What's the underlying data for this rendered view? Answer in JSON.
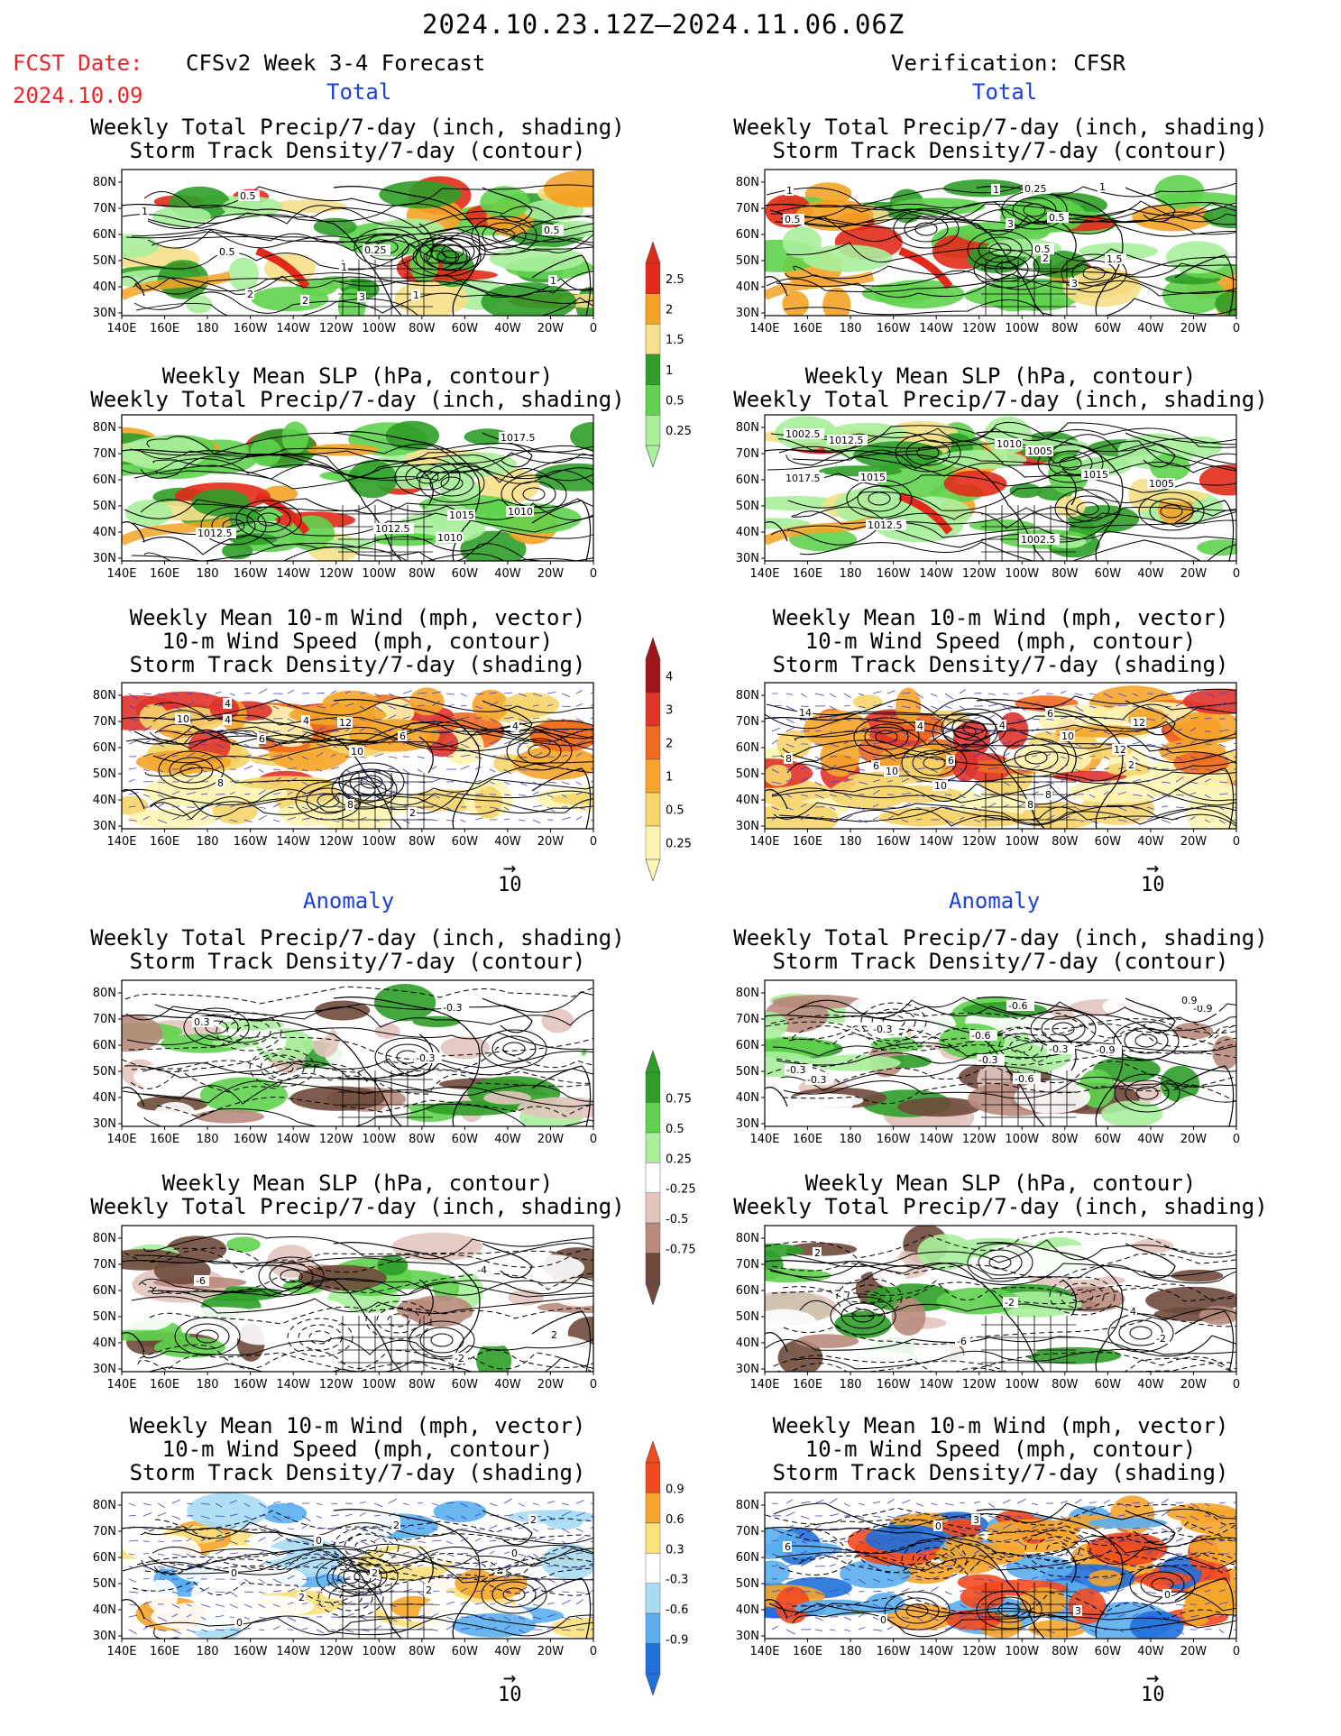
{
  "header": {
    "main_title": "2024.10.23.12Z–2024.11.06.06Z",
    "fcst_label": "FCST Date:",
    "fcst_date": "2024.10.09",
    "left_title": "CFSv2 Week 3-4 Forecast",
    "right_title": "Verification: CFSR",
    "section_total": "Total",
    "section_anomaly": "Anomaly"
  },
  "panel_titles": {
    "precip_storm": [
      "Weekly Total Precip/7-day (inch, shading)",
      "Storm Track Density/7-day (contour)"
    ],
    "slp_precip": [
      "Weekly Mean SLP (hPa, contour)",
      "Weekly Total Precip/7-day (inch, shading)"
    ],
    "wind": [
      "Weekly Mean 10-m Wind (mph, vector)",
      "10-m Wind Speed (mph, contour)",
      "Storm Track Density/7-day (shading)"
    ]
  },
  "axes": {
    "lon_labels": [
      "140E",
      "160E",
      "180",
      "160W",
      "140W",
      "120W",
      "100W",
      "80W",
      "60W",
      "40W",
      "20W",
      "0"
    ],
    "lat_labels": [
      "80N",
      "70N",
      "60N",
      "50N",
      "40N",
      "30N"
    ]
  },
  "vector_ref": "10",
  "colorbars": {
    "precip_total": {
      "labels": [
        "2.5",
        "2",
        "1.5",
        "1",
        "0.5",
        "0.25"
      ],
      "colors": [
        "#e22a1a",
        "#f5a326",
        "#f7e08a",
        "#2e9e28",
        "#5fd34e",
        "#a9ef9c"
      ]
    },
    "storm_total": {
      "labels": [
        "4",
        "3",
        "2",
        "1",
        "0.5",
        "0.25"
      ],
      "colors": [
        "#a0141a",
        "#e0332a",
        "#f06a20",
        "#f6a52a",
        "#f6d56c",
        "#fdf5b4"
      ]
    },
    "precip_anom": {
      "labels": [
        "0.75",
        "0.5",
        "0.25",
        "-0.25",
        "-0.5",
        "-0.75"
      ],
      "colors": [
        "#2e9e28",
        "#5fd34e",
        "#a9ef9c",
        "#ffffff",
        "#e2c5bd",
        "#b88b7c",
        "#6f4a3c"
      ]
    },
    "storm_anom": {
      "labels": [
        "0.9",
        "0.6",
        "0.3",
        "-0.3",
        "-0.6",
        "-0.9"
      ],
      "colors": [
        "#f24a1e",
        "#f6a52a",
        "#fbe17a",
        "#ffffff",
        "#a8dcf5",
        "#5aaef0",
        "#1f6fdc"
      ]
    }
  },
  "contour_labels": {
    "L1": [
      "1",
      "0.5",
      "2",
      "0.5",
      "3",
      "1",
      "0.5",
      "0.25",
      "1",
      "2",
      "1"
    ],
    "R1": [
      "1",
      "0.5",
      "0.25",
      "2",
      "3",
      "1.5",
      "0.5",
      "1",
      "3",
      "0.5",
      "1"
    ],
    "L2": [
      "1012.5",
      "1010",
      "1010",
      "1012.5",
      "1017.5",
      "1015"
    ],
    "R2": [
      "1005",
      "1012.5",
      "1012.5",
      "1002.5",
      "1005",
      "1010",
      "1015",
      "1015",
      "1002.5",
      "1017.5"
    ],
    "L3": [
      "2",
      "8",
      "10",
      "10",
      "4",
      "12",
      "4",
      "4",
      "6",
      "4",
      "6",
      "8"
    ],
    "R3": [
      "10",
      "8",
      "2",
      "4",
      "6",
      "10",
      "12",
      "10",
      "4",
      "8",
      "6",
      "14",
      "12",
      "6",
      "8"
    ],
    "L4": [
      "-0.3",
      "-0.3",
      "0.3"
    ],
    "R4": [
      "-0.9",
      "-0.3",
      "-0.6",
      "-0.3",
      "-0.6",
      "-0.9",
      "0.9",
      "-0.6",
      "-0.3",
      "-0.3",
      "-0.3"
    ],
    "L5": [
      "-4",
      "-6",
      "-2",
      "2"
    ],
    "R5": [
      "4",
      "-2",
      "2",
      "-6",
      "-2"
    ],
    "L6": [
      "0",
      "2",
      "2",
      "2",
      "0",
      "2",
      "2",
      "0",
      "0"
    ],
    "R6": [
      "0",
      "6",
      "3",
      "0",
      "0",
      "3"
    ]
  },
  "chart_data": [
    {
      "type": "heatmap",
      "title": "Weekly Total Precip/7-day (inch, shading)",
      "subtitle": "Storm Track Density/7-day (contour)",
      "panel": "CFSv2 Week 3-4 Forecast - Total",
      "xlim": [
        "140E",
        "0"
      ],
      "ylim": [
        "25N",
        "85N"
      ]
    },
    {
      "type": "heatmap",
      "title": "Weekly Total Precip/7-day (inch, shading)",
      "subtitle": "Storm Track Density/7-day (contour)",
      "panel": "Verification: CFSR - Total",
      "xlim": [
        "140E",
        "0"
      ],
      "ylim": [
        "25N",
        "85N"
      ]
    },
    {
      "type": "heatmap",
      "title": "Weekly Mean SLP (hPa, contour)",
      "subtitle": "Weekly Total Precip/7-day (inch, shading)",
      "panel": "CFSv2 Week 3-4 Forecast - Total"
    },
    {
      "type": "heatmap",
      "title": "Weekly Mean SLP (hPa, contour)",
      "subtitle": "Weekly Total Precip/7-day (inch, shading)",
      "panel": "Verification: CFSR - Total"
    },
    {
      "type": "heatmap",
      "title": "Weekly Mean 10-m Wind (mph, vector)",
      "subtitle": "10-m Wind Speed (mph, contour); Storm Track Density/7-day (shading)",
      "panel": "CFSv2 Week 3-4 Forecast - Total"
    },
    {
      "type": "heatmap",
      "title": "Weekly Mean 10-m Wind (mph, vector)",
      "subtitle": "10-m Wind Speed (mph, contour); Storm Track Density/7-day (shading)",
      "panel": "Verification: CFSR - Total"
    },
    {
      "type": "heatmap",
      "title": "Weekly Total Precip/7-day (inch, shading)",
      "subtitle": "Storm Track Density/7-day (contour)",
      "panel": "CFSv2 Week 3-4 Forecast - Anomaly"
    },
    {
      "type": "heatmap",
      "title": "Weekly Total Precip/7-day (inch, shading)",
      "subtitle": "Storm Track Density/7-day (contour)",
      "panel": "Verification: CFSR - Anomaly"
    },
    {
      "type": "heatmap",
      "title": "Weekly Mean SLP (hPa, contour)",
      "subtitle": "Weekly Total Precip/7-day (inch, shading)",
      "panel": "CFSv2 Week 3-4 Forecast - Anomaly"
    },
    {
      "type": "heatmap",
      "title": "Weekly Mean SLP (hPa, contour)",
      "subtitle": "Weekly Total Precip/7-day (inch, shading)",
      "panel": "Verification: CFSR - Anomaly"
    },
    {
      "type": "heatmap",
      "title": "Weekly Mean 10-m Wind (mph, vector)",
      "subtitle": "10-m Wind Speed (mph, contour); Storm Track Density/7-day (shading)",
      "panel": "CFSv2 Week 3-4 Forecast - Anomaly"
    },
    {
      "type": "heatmap",
      "title": "Weekly Mean 10-m Wind (mph, vector)",
      "subtitle": "10-m Wind Speed (mph, contour); Storm Track Density/7-day (shading)",
      "panel": "Verification: CFSR - Anomaly"
    }
  ]
}
